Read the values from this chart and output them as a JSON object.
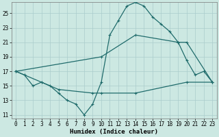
{
  "xlabel": "Humidex (Indice chaleur)",
  "background_color": "#cce8e2",
  "grid_color": "#aacccc",
  "line_color": "#1f6b6b",
  "xlim": [
    -0.5,
    23.5
  ],
  "ylim": [
    10.5,
    26.5
  ],
  "xticks": [
    0,
    1,
    2,
    3,
    4,
    5,
    6,
    7,
    8,
    9,
    10,
    11,
    12,
    13,
    14,
    15,
    16,
    17,
    18,
    19,
    20,
    21,
    22,
    23
  ],
  "yticks": [
    11,
    13,
    15,
    17,
    19,
    21,
    23,
    25
  ],
  "line1_x": [
    0,
    1,
    2,
    3,
    4,
    5,
    6,
    7,
    8,
    9,
    10,
    11,
    12,
    13,
    14,
    15,
    16,
    17,
    18,
    19,
    20,
    21,
    22,
    23
  ],
  "line1_y": [
    17.0,
    16.5,
    15.0,
    15.5,
    15.0,
    14.0,
    13.0,
    12.5,
    11.0,
    12.5,
    15.5,
    22.0,
    24.0,
    26.0,
    26.5,
    26.0,
    24.5,
    23.5,
    22.5,
    21.0,
    18.5,
    16.5,
    17.0,
    15.5
  ],
  "line2_x": [
    0,
    10,
    14,
    19,
    20,
    23
  ],
  "line2_y": [
    17.0,
    19.0,
    22.0,
    21.0,
    21.0,
    15.5
  ],
  "line3_x": [
    0,
    3,
    5,
    9,
    10,
    14,
    20,
    23
  ],
  "line3_y": [
    17.0,
    15.5,
    14.5,
    14.0,
    14.0,
    14.0,
    15.5,
    15.5
  ],
  "linewidth": 0.9,
  "markersize": 3,
  "tick_fontsize": 5.5,
  "label_fontsize": 6.5
}
